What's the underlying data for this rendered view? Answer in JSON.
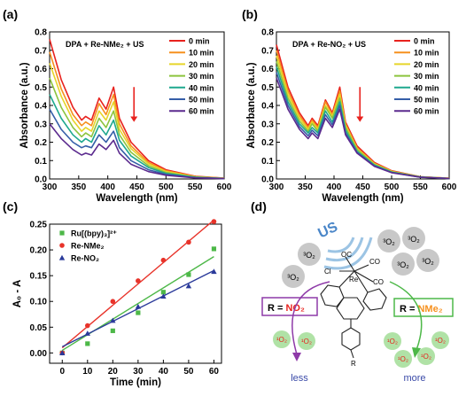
{
  "panels": {
    "a": "(a)",
    "b": "(b)",
    "c": "(c)",
    "d": "(d)"
  },
  "legend_times": [
    "0 min",
    "10 min",
    "20 min",
    "30 min",
    "40 min",
    "50 min",
    "60 min"
  ],
  "time_colors": [
    "#e8221e",
    "#f6901e",
    "#e6d52a",
    "#8cc43e",
    "#1ea88e",
    "#355ea8",
    "#5b2a8e"
  ],
  "scheme": {
    "us": "US",
    "o2_triplet": "³O₂",
    "o2_singlet": "¹O₂",
    "ligand_co": "CO",
    "ligand_oc": "OC",
    "ligand_cl": "Cl",
    "metal": "Re",
    "r_group": "R",
    "box_left_prefix": "R = ",
    "box_left_value": "NO₂",
    "box_right_prefix": "R = ",
    "box_right_value": "NMe₂",
    "less": "less",
    "more": "more"
  },
  "chart_data": [
    {
      "type": "line",
      "panel": "(a)",
      "title": "DPA + Re-NMe₂ + US",
      "xlabel": "Wavelength (nm)",
      "ylabel": "Absorbance (a.u.)",
      "xlim": [
        300,
        600
      ],
      "ylim": [
        0,
        0.8
      ],
      "xticks": [
        300,
        350,
        400,
        450,
        500,
        550,
        600
      ],
      "yticks": [
        0.0,
        0.1,
        0.2,
        0.3,
        0.4,
        0.5,
        0.6,
        0.7,
        0.8
      ],
      "legend_position": "top-right",
      "annotation": "downward arrow near 445 nm indicating decrease with time",
      "series": [
        {
          "name": "0 min",
          "x": [
            300,
            320,
            340,
            355,
            362,
            372,
            385,
            397,
            410,
            420,
            440,
            470,
            500,
            550,
            600
          ],
          "y": [
            0.76,
            0.54,
            0.39,
            0.32,
            0.34,
            0.32,
            0.44,
            0.38,
            0.5,
            0.33,
            0.2,
            0.1,
            0.05,
            0.015,
            0.005
          ]
        },
        {
          "name": "10 min",
          "x": [
            300,
            320,
            340,
            355,
            362,
            372,
            385,
            397,
            410,
            420,
            440,
            470,
            500,
            550,
            600
          ],
          "y": [
            0.69,
            0.49,
            0.35,
            0.29,
            0.31,
            0.29,
            0.41,
            0.35,
            0.46,
            0.3,
            0.18,
            0.09,
            0.045,
            0.013,
            0.004
          ]
        },
        {
          "name": "20 min",
          "x": [
            300,
            320,
            340,
            355,
            362,
            372,
            385,
            397,
            410,
            420,
            440,
            470,
            500,
            550,
            600
          ],
          "y": [
            0.63,
            0.45,
            0.32,
            0.26,
            0.28,
            0.26,
            0.37,
            0.32,
            0.42,
            0.27,
            0.165,
            0.082,
            0.04,
            0.012,
            0.004
          ]
        },
        {
          "name": "30 min",
          "x": [
            300,
            320,
            340,
            355,
            362,
            372,
            385,
            397,
            410,
            420,
            440,
            470,
            500,
            550,
            600
          ],
          "y": [
            0.55,
            0.39,
            0.28,
            0.23,
            0.25,
            0.23,
            0.33,
            0.28,
            0.37,
            0.24,
            0.145,
            0.072,
            0.035,
            0.01,
            0.003
          ]
        },
        {
          "name": "40 min",
          "x": [
            300,
            320,
            340,
            355,
            362,
            372,
            385,
            397,
            410,
            420,
            440,
            470,
            500,
            550,
            600
          ],
          "y": [
            0.46,
            0.33,
            0.24,
            0.2,
            0.22,
            0.2,
            0.29,
            0.24,
            0.32,
            0.21,
            0.125,
            0.062,
            0.03,
            0.009,
            0.003
          ]
        },
        {
          "name": "50 min",
          "x": [
            300,
            320,
            340,
            355,
            362,
            372,
            385,
            397,
            410,
            420,
            440,
            470,
            500,
            550,
            600
          ],
          "y": [
            0.38,
            0.27,
            0.2,
            0.17,
            0.18,
            0.17,
            0.24,
            0.2,
            0.26,
            0.17,
            0.1,
            0.05,
            0.025,
            0.007,
            0.002
          ]
        },
        {
          "name": "60 min",
          "x": [
            300,
            320,
            340,
            355,
            362,
            372,
            385,
            397,
            410,
            420,
            440,
            470,
            500,
            550,
            600
          ],
          "y": [
            0.3,
            0.22,
            0.16,
            0.13,
            0.14,
            0.13,
            0.19,
            0.16,
            0.21,
            0.14,
            0.08,
            0.04,
            0.02,
            0.006,
            0.002
          ]
        }
      ]
    },
    {
      "type": "line",
      "panel": "(b)",
      "title": "DPA + Re-NO₂ + US",
      "xlabel": "Wavelength (nm)",
      "ylabel": "Absorbance (a.u.)",
      "xlim": [
        300,
        600
      ],
      "ylim": [
        0,
        0.8
      ],
      "xticks": [
        300,
        350,
        400,
        450,
        500,
        550,
        600
      ],
      "yticks": [
        0.0,
        0.1,
        0.2,
        0.3,
        0.4,
        0.5,
        0.6,
        0.7,
        0.8
      ],
      "legend_position": "top-right",
      "annotation": "downward arrow near 445 nm indicating decrease with time",
      "series": [
        {
          "name": "0 min",
          "x": [
            300,
            320,
            340,
            355,
            362,
            372,
            385,
            397,
            410,
            420,
            440,
            470,
            500,
            550,
            600
          ],
          "y": [
            0.73,
            0.5,
            0.36,
            0.29,
            0.33,
            0.29,
            0.43,
            0.36,
            0.5,
            0.31,
            0.18,
            0.09,
            0.045,
            0.012,
            0.004
          ]
        },
        {
          "name": "10 min",
          "x": [
            300,
            320,
            340,
            355,
            362,
            372,
            385,
            397,
            410,
            420,
            440,
            470,
            500,
            550,
            600
          ],
          "y": [
            0.7,
            0.48,
            0.345,
            0.28,
            0.32,
            0.28,
            0.42,
            0.35,
            0.48,
            0.3,
            0.17,
            0.085,
            0.043,
            0.012,
            0.004
          ]
        },
        {
          "name": "20 min",
          "x": [
            300,
            320,
            340,
            355,
            362,
            372,
            385,
            397,
            410,
            420,
            440,
            470,
            500,
            550,
            600
          ],
          "y": [
            0.67,
            0.46,
            0.33,
            0.27,
            0.31,
            0.27,
            0.4,
            0.34,
            0.46,
            0.29,
            0.165,
            0.082,
            0.041,
            0.011,
            0.004
          ]
        },
        {
          "name": "30 min",
          "x": [
            300,
            320,
            340,
            355,
            362,
            372,
            385,
            397,
            410,
            420,
            440,
            470,
            500,
            550,
            600
          ],
          "y": [
            0.64,
            0.44,
            0.315,
            0.26,
            0.3,
            0.26,
            0.39,
            0.33,
            0.44,
            0.28,
            0.16,
            0.079,
            0.039,
            0.011,
            0.003
          ]
        },
        {
          "name": "40 min",
          "x": [
            300,
            320,
            340,
            355,
            362,
            372,
            385,
            397,
            410,
            420,
            440,
            470,
            500,
            550,
            600
          ],
          "y": [
            0.61,
            0.42,
            0.3,
            0.25,
            0.28,
            0.25,
            0.37,
            0.31,
            0.42,
            0.265,
            0.15,
            0.075,
            0.037,
            0.01,
            0.003
          ]
        },
        {
          "name": "50 min",
          "x": [
            300,
            320,
            340,
            355,
            362,
            372,
            385,
            397,
            410,
            420,
            440,
            470,
            500,
            550,
            600
          ],
          "y": [
            0.58,
            0.4,
            0.285,
            0.235,
            0.265,
            0.235,
            0.35,
            0.295,
            0.4,
            0.25,
            0.145,
            0.072,
            0.035,
            0.01,
            0.003
          ]
        },
        {
          "name": "60 min",
          "x": [
            300,
            320,
            340,
            355,
            362,
            372,
            385,
            397,
            410,
            420,
            440,
            470,
            500,
            550,
            600
          ],
          "y": [
            0.55,
            0.38,
            0.27,
            0.22,
            0.25,
            0.22,
            0.33,
            0.28,
            0.38,
            0.24,
            0.14,
            0.069,
            0.034,
            0.009,
            0.003
          ]
        }
      ]
    },
    {
      "type": "scatter",
      "panel": "(c)",
      "title": "",
      "xlabel": "Time (min)",
      "ylabel": "A₀ - A",
      "xlim": [
        -5,
        63
      ],
      "ylim": [
        -0.02,
        0.25
      ],
      "xticks": [
        0,
        10,
        20,
        30,
        40,
        50,
        60
      ],
      "yticks": [
        0.0,
        0.05,
        0.1,
        0.15,
        0.2,
        0.25
      ],
      "legend_position": "top-left",
      "series": [
        {
          "name": "Ru[(bpy)₃]²⁺",
          "marker": "square",
          "color": "#4db848",
          "x": [
            0,
            10,
            20,
            30,
            40,
            50,
            60
          ],
          "y": [
            0.0,
            0.018,
            0.043,
            0.078,
            0.118,
            0.152,
            0.202
          ],
          "fit": [
            0.005,
            0.187
          ]
        },
        {
          "name": "Re-NMe₂",
          "marker": "circle",
          "color": "#e8332a",
          "x": [
            0,
            10,
            20,
            30,
            40,
            50,
            60
          ],
          "y": [
            0.0,
            0.053,
            0.1,
            0.14,
            0.18,
            0.215,
            0.255
          ],
          "fit": [
            0.01,
            0.258
          ]
        },
        {
          "name": "Re-NO₂",
          "marker": "triangle",
          "color": "#2a3a9a",
          "x": [
            0,
            10,
            20,
            30,
            40,
            50,
            60
          ],
          "y": [
            0.0,
            0.038,
            0.063,
            0.09,
            0.11,
            0.13,
            0.158
          ],
          "fit": [
            0.012,
            0.16
          ]
        }
      ]
    }
  ]
}
